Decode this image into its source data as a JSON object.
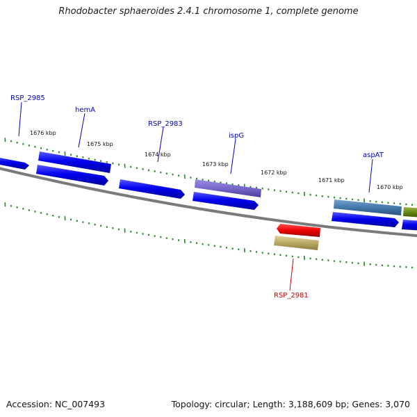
{
  "title": "Rhodobacter sphaeroides 2.4.1 chromosome 1, complete genome",
  "footer": {
    "accession": "Accession: NC_007493",
    "summary": "Topology: circular; Length: 3,188,609 bp; Genes: 3,070"
  },
  "scale_labels": [
    "1676 kbp",
    "1675 kbp",
    "1674 kbp",
    "1673 kbp",
    "1672 kbp",
    "1671 kbp",
    "1670 kbp"
  ],
  "gene_labels": [
    {
      "name": "RSP_2985",
      "color": "#0000bb"
    },
    {
      "name": "hemA",
      "color": "#0000bb"
    },
    {
      "name": "RSP_2983",
      "color": "#0000bb"
    },
    {
      "name": "ispG",
      "color": "#0000bb"
    },
    {
      "name": "aspAT",
      "color": "#0000bb"
    },
    {
      "name": "RSP_2981",
      "color": "#cc0000"
    }
  ],
  "colors": {
    "cds": "#0000ee",
    "rrna_purple": "#7766cc",
    "gene_steelblue": "#4477aa",
    "gene_olive": "#668811",
    "gene_red": "#ee0000",
    "gene_khaki": "#bbaa66",
    "tick_green": "#228822",
    "backbone": "#888888"
  }
}
